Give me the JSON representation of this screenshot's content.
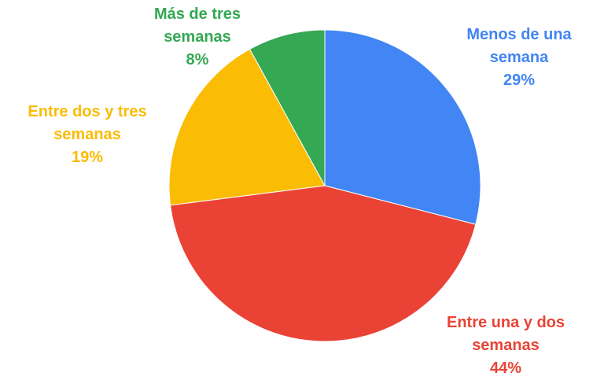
{
  "chart_data": {
    "type": "pie",
    "categories": [
      "Menos de una semana",
      "Entre una y dos semanas",
      "Entre dos y tres semanas",
      "Más de tres semanas"
    ],
    "values": [
      29,
      44,
      19,
      8
    ],
    "value_labels": [
      "29%",
      "44%",
      "19%",
      "8%"
    ],
    "colors": [
      "#4285f4",
      "#ea4335",
      "#fbbc04",
      "#34a853"
    ]
  }
}
